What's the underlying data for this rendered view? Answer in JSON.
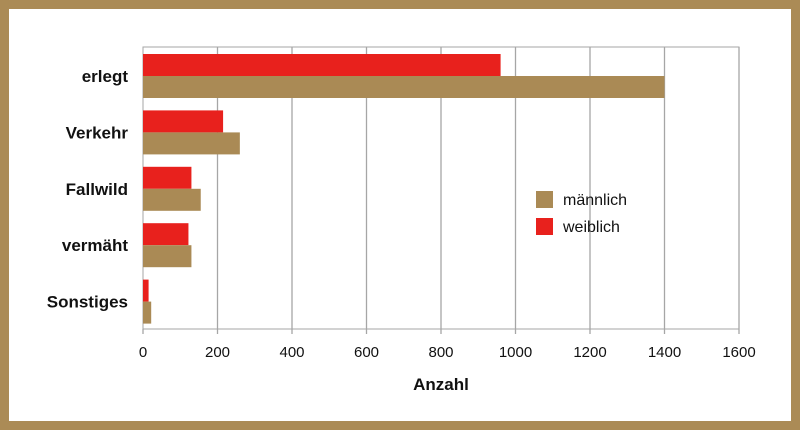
{
  "colors": {
    "frame": "#ab8b56",
    "grid": "#a6a6a6"
  },
  "chart_data": {
    "type": "bar",
    "orientation": "horizontal",
    "categories": [
      "erlegt",
      "Verkehr",
      "Fallwild",
      "vermäht",
      "Sonstiges"
    ],
    "series": [
      {
        "name": "männlich",
        "color": "#aa8a55",
        "values": [
          1400,
          260,
          155,
          130,
          22
        ]
      },
      {
        "name": "weiblich",
        "color": "#e8211d",
        "values": [
          960,
          215,
          130,
          122,
          15
        ]
      }
    ],
    "xlabel": "Anzahl",
    "ylabel": "",
    "xlim": [
      0,
      1600
    ],
    "xticks": [
      0,
      200,
      400,
      600,
      800,
      1000,
      1200,
      1400,
      1600
    ],
    "grid": true,
    "legend_position": "right"
  }
}
